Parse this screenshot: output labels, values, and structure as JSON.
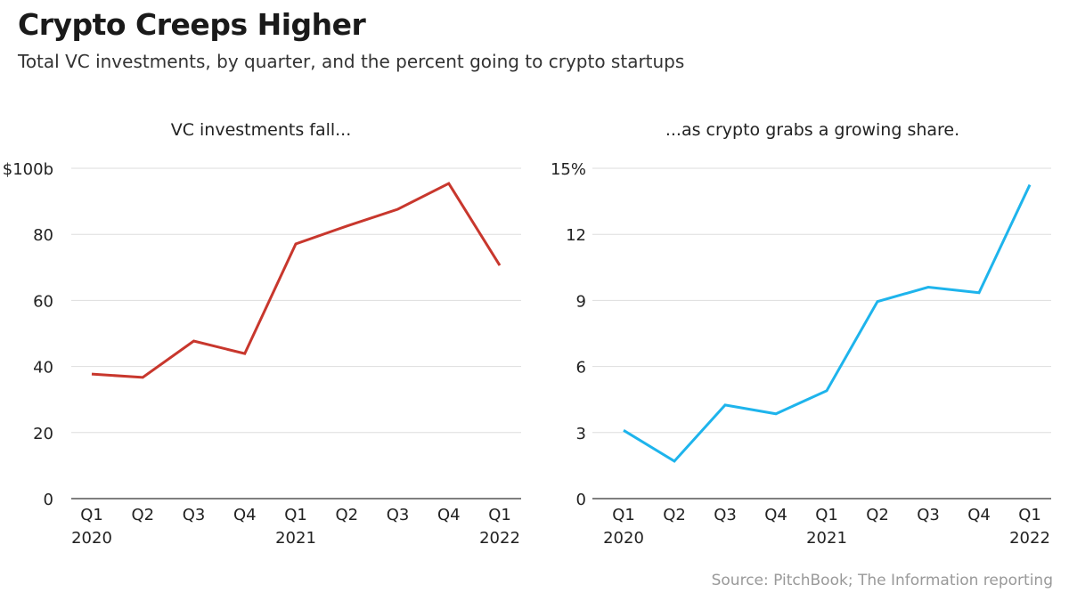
{
  "title": "Crypto Creeps Higher",
  "subtitle": "Total VC investments, by quarter, and the percent going to crypto startups",
  "source": "Source: PitchBook; The Information reporting",
  "chart_data": [
    {
      "type": "line",
      "title": "VC investments fall...",
      "categories": [
        "Q1 2020",
        "Q2 2020",
        "Q3 2020",
        "Q4 2020",
        "Q1 2021",
        "Q2 2021",
        "Q3 2021",
        "Q4 2021",
        "Q1 2022"
      ],
      "x_tick_labels": [
        [
          "Q1",
          "2020"
        ],
        [
          "Q2",
          ""
        ],
        [
          "Q3",
          ""
        ],
        [
          "Q4",
          ""
        ],
        [
          "Q1",
          "2021"
        ],
        [
          "Q2",
          ""
        ],
        [
          "Q3",
          ""
        ],
        [
          "Q4",
          ""
        ],
        [
          "Q1",
          "2022"
        ]
      ],
      "values": [
        37.7,
        36.7,
        47.7,
        43.9,
        77.1,
        82.5,
        87.6,
        95.4,
        70.6
      ],
      "ylim": [
        0,
        100
      ],
      "yticks": [
        0,
        20,
        40,
        60,
        80,
        100
      ],
      "ytick_labels": [
        "0",
        "20",
        "40",
        "60",
        "80",
        "$100b"
      ],
      "grid": true,
      "color": "#c8372d"
    },
    {
      "type": "line",
      "title": "...as crypto grabs a growing share.",
      "categories": [
        "Q1 2020",
        "Q2 2020",
        "Q3 2020",
        "Q4 2020",
        "Q1 2021",
        "Q2 2021",
        "Q3 2021",
        "Q4 2021",
        "Q1 2022"
      ],
      "x_tick_labels": [
        [
          "Q1",
          "2020"
        ],
        [
          "Q2",
          ""
        ],
        [
          "Q3",
          ""
        ],
        [
          "Q4",
          ""
        ],
        [
          "Q1",
          "2021"
        ],
        [
          "Q2",
          ""
        ],
        [
          "Q3",
          ""
        ],
        [
          "Q4",
          ""
        ],
        [
          "Q1",
          "2022"
        ]
      ],
      "values": [
        3.1,
        1.7,
        4.25,
        3.85,
        4.9,
        8.95,
        9.6,
        9.35,
        14.25
      ],
      "ylim": [
        0,
        15
      ],
      "yticks": [
        0,
        3,
        6,
        9,
        12,
        15
      ],
      "ytick_labels": [
        "0",
        "3",
        "6",
        "9",
        "12",
        "15%"
      ],
      "grid": true,
      "color": "#1eb4ec"
    }
  ]
}
